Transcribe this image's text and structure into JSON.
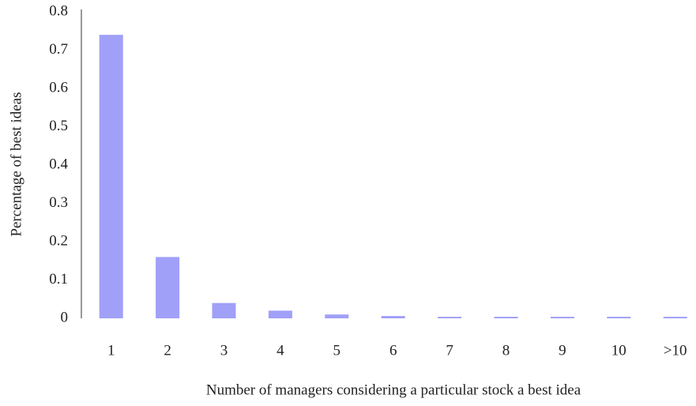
{
  "chart_data": {
    "type": "bar",
    "x_label": "Number of managers considering a particular stock a best idea",
    "y_label": "Percentage of best ideas",
    "categories": [
      "1",
      "2",
      "3",
      "4",
      "5",
      "6",
      "7",
      "8",
      "9",
      "10",
      ">10"
    ],
    "values": [
      0.74,
      0.16,
      0.04,
      0.02,
      0.01,
      0.006,
      0.004,
      0.004,
      0.004,
      0.004,
      0.004
    ],
    "color": "#a0a0f8",
    "ylim": [
      0,
      0.8
    ],
    "yticks": [
      0,
      0.1,
      0.2,
      0.3,
      0.4,
      0.5,
      0.6,
      0.7,
      0.8
    ],
    "grid": false
  }
}
